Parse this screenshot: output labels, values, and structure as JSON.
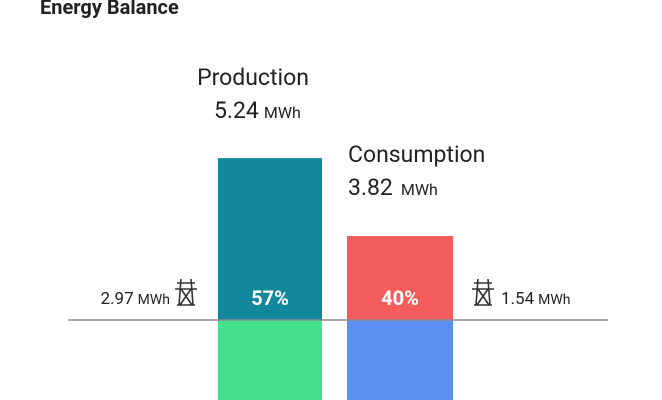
{
  "title": "Energy Balance",
  "production": {
    "label": "Production",
    "value": 5.24,
    "unit": "MWh",
    "percent_label": "57%",
    "grid_value": 2.97,
    "grid_unit": "MWh",
    "color": "#13889a",
    "bottom_color": "#45e08c"
  },
  "consumption": {
    "label": "Consumption",
    "value": 3.82,
    "unit": "MWh",
    "percent_label": "40%",
    "grid_value": 1.54,
    "grid_unit": "MWh",
    "color": "#f45c5c",
    "bottom_color": "#5b8ff0"
  }
}
